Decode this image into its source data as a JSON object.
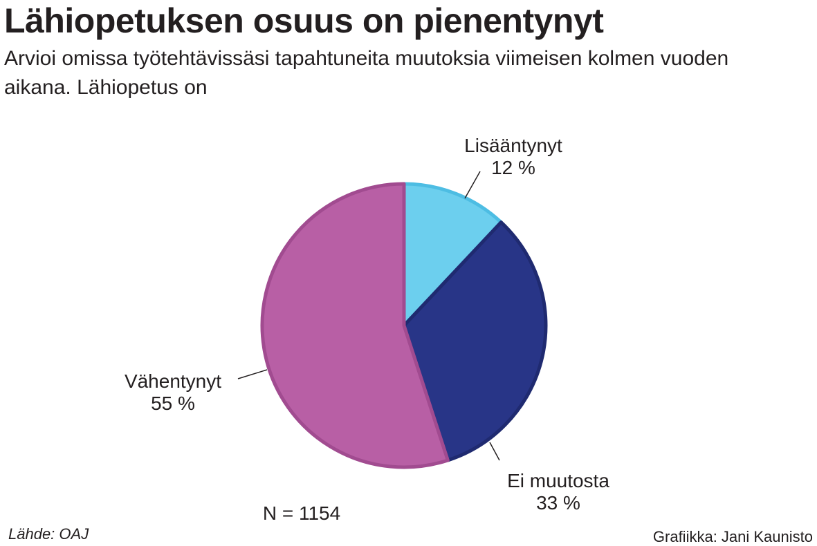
{
  "title": "Lähiopetuksen osuus on pienentynyt",
  "subtitle": "Arvioi omissa työtehtävissäsi tapahtuneita muutoksia viimeisen kolmen vuoden aikana. Lähiopetus on",
  "source": "Lähde: OAJ",
  "credit": "Grafiikka: Jani Kaunisto",
  "chart_data": {
    "type": "pie",
    "note": "N = 1154",
    "slices": [
      {
        "label": "Lisääntynyt",
        "value": 12,
        "value_label": "12 %",
        "color": "#6ccfee",
        "border": "#4dbde3"
      },
      {
        "label": "Ei muutosta",
        "value": 33,
        "value_label": "33 %",
        "color": "#283587",
        "border": "#1f2a70"
      },
      {
        "label": "Vähentynyt",
        "value": 55,
        "value_label": "55 %",
        "color": "#b85fa5",
        "border": "#a14b90"
      }
    ]
  }
}
